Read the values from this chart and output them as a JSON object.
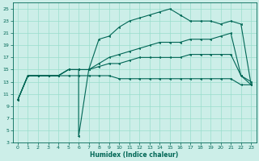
{
  "xlabel": "Humidex (Indice chaleur)",
  "bg_color": "#cceee8",
  "grid_color": "#99ddcc",
  "line_color": "#006655",
  "xlim": [
    -0.5,
    23.5
  ],
  "ylim": [
    3,
    26
  ],
  "xticks": [
    0,
    1,
    2,
    3,
    4,
    5,
    6,
    7,
    8,
    9,
    10,
    11,
    12,
    13,
    14,
    15,
    16,
    17,
    18,
    19,
    20,
    21,
    22,
    23
  ],
  "yticks": [
    3,
    5,
    7,
    9,
    11,
    13,
    15,
    17,
    19,
    21,
    23,
    25
  ],
  "curves": [
    {
      "x": [
        0,
        1,
        2,
        3,
        4,
        5,
        6,
        6,
        7,
        8,
        9,
        10,
        11,
        12,
        13,
        14,
        15,
        16,
        17,
        18,
        19,
        20,
        21,
        22,
        23
      ],
      "y": [
        10,
        14,
        14,
        14,
        14,
        15,
        15,
        4,
        15,
        20,
        20.5,
        22,
        23,
        23.5,
        24,
        24.5,
        25,
        24,
        23,
        23,
        23,
        22.5,
        23,
        22.5,
        12.5
      ]
    },
    {
      "x": [
        0,
        1,
        2,
        3,
        4,
        5,
        6,
        7,
        8,
        9,
        10,
        11,
        12,
        13,
        14,
        15,
        16,
        17,
        18,
        19,
        20,
        21,
        22,
        23
      ],
      "y": [
        10,
        14,
        14,
        14,
        14,
        15,
        15,
        15,
        16,
        17,
        17.5,
        18,
        18.5,
        19,
        19.5,
        19.5,
        19.5,
        20,
        20,
        20,
        20.5,
        21,
        14,
        12.5
      ]
    },
    {
      "x": [
        0,
        1,
        2,
        3,
        4,
        5,
        6,
        7,
        8,
        9,
        10,
        11,
        12,
        13,
        14,
        15,
        16,
        17,
        18,
        19,
        20,
        21,
        22,
        23
      ],
      "y": [
        10,
        14,
        14,
        14,
        14,
        15,
        15,
        15,
        15.5,
        16,
        16,
        16.5,
        17,
        17,
        17,
        17,
        17,
        17.5,
        17.5,
        17.5,
        17.5,
        17.5,
        14,
        13
      ]
    },
    {
      "x": [
        0,
        1,
        2,
        3,
        4,
        5,
        6,
        7,
        8,
        9,
        10,
        11,
        12,
        13,
        14,
        15,
        16,
        17,
        18,
        19,
        20,
        21,
        22,
        23
      ],
      "y": [
        10,
        14,
        14,
        14,
        14,
        14,
        14,
        14,
        14,
        14,
        13.5,
        13.5,
        13.5,
        13.5,
        13.5,
        13.5,
        13.5,
        13.5,
        13.5,
        13.5,
        13.5,
        13.5,
        12.5,
        12.5
      ]
    }
  ]
}
